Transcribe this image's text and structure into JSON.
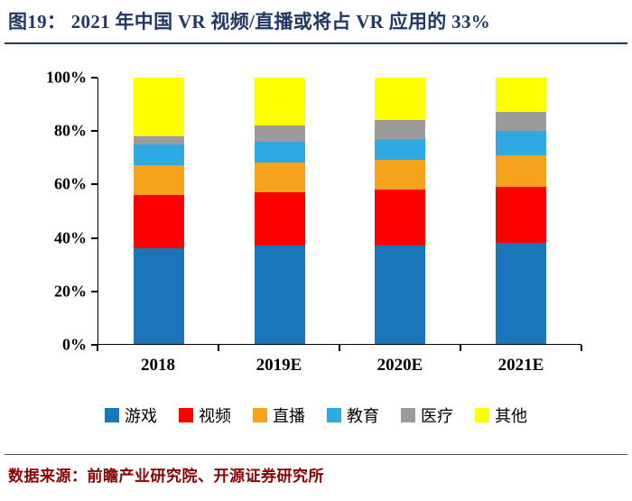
{
  "figure": {
    "title": "图19：  2021 年中国 VR 视频/直播或将占 VR 应用的 33%",
    "source": "数据来源：前瞻产业研究院、开源证券研究所"
  },
  "colors": {
    "title_text": "#1F3864",
    "title_rule": "#1F3864",
    "source_text": "#8B0000",
    "axis": "#000000",
    "background": "#FFFFFF"
  },
  "chart_data": {
    "type": "bar",
    "stacked": true,
    "unit": "percent",
    "title": "2021年中国VR视频/直播或将占VR应用的33%",
    "categories": [
      "2018",
      "2019E",
      "2020E",
      "2021E"
    ],
    "series": [
      {
        "name": "游戏",
        "color": "#1B75BB",
        "values": [
          36,
          37,
          37,
          38
        ]
      },
      {
        "name": "视频",
        "color": "#FE0000",
        "values": [
          20,
          20,
          21,
          21
        ]
      },
      {
        "name": "直播",
        "color": "#F5A31D",
        "values": [
          11,
          11,
          11,
          12
        ]
      },
      {
        "name": "教育",
        "color": "#2FA9E1",
        "values": [
          8,
          8,
          8,
          9
        ]
      },
      {
        "name": "医疗",
        "color": "#9B9B9B",
        "values": [
          3,
          6,
          7,
          7
        ]
      },
      {
        "name": "其他",
        "color": "#FFFF00",
        "values": [
          22,
          18,
          16,
          13
        ]
      }
    ],
    "xlabel": "",
    "ylabel": "",
    "ylim": [
      0,
      100
    ],
    "yticks": [
      0,
      20,
      40,
      60,
      80,
      100
    ],
    "ytick_labels": [
      "0%",
      "20%",
      "40%",
      "60%",
      "80%",
      "100%"
    ],
    "grid": false,
    "legend_position": "bottom"
  }
}
